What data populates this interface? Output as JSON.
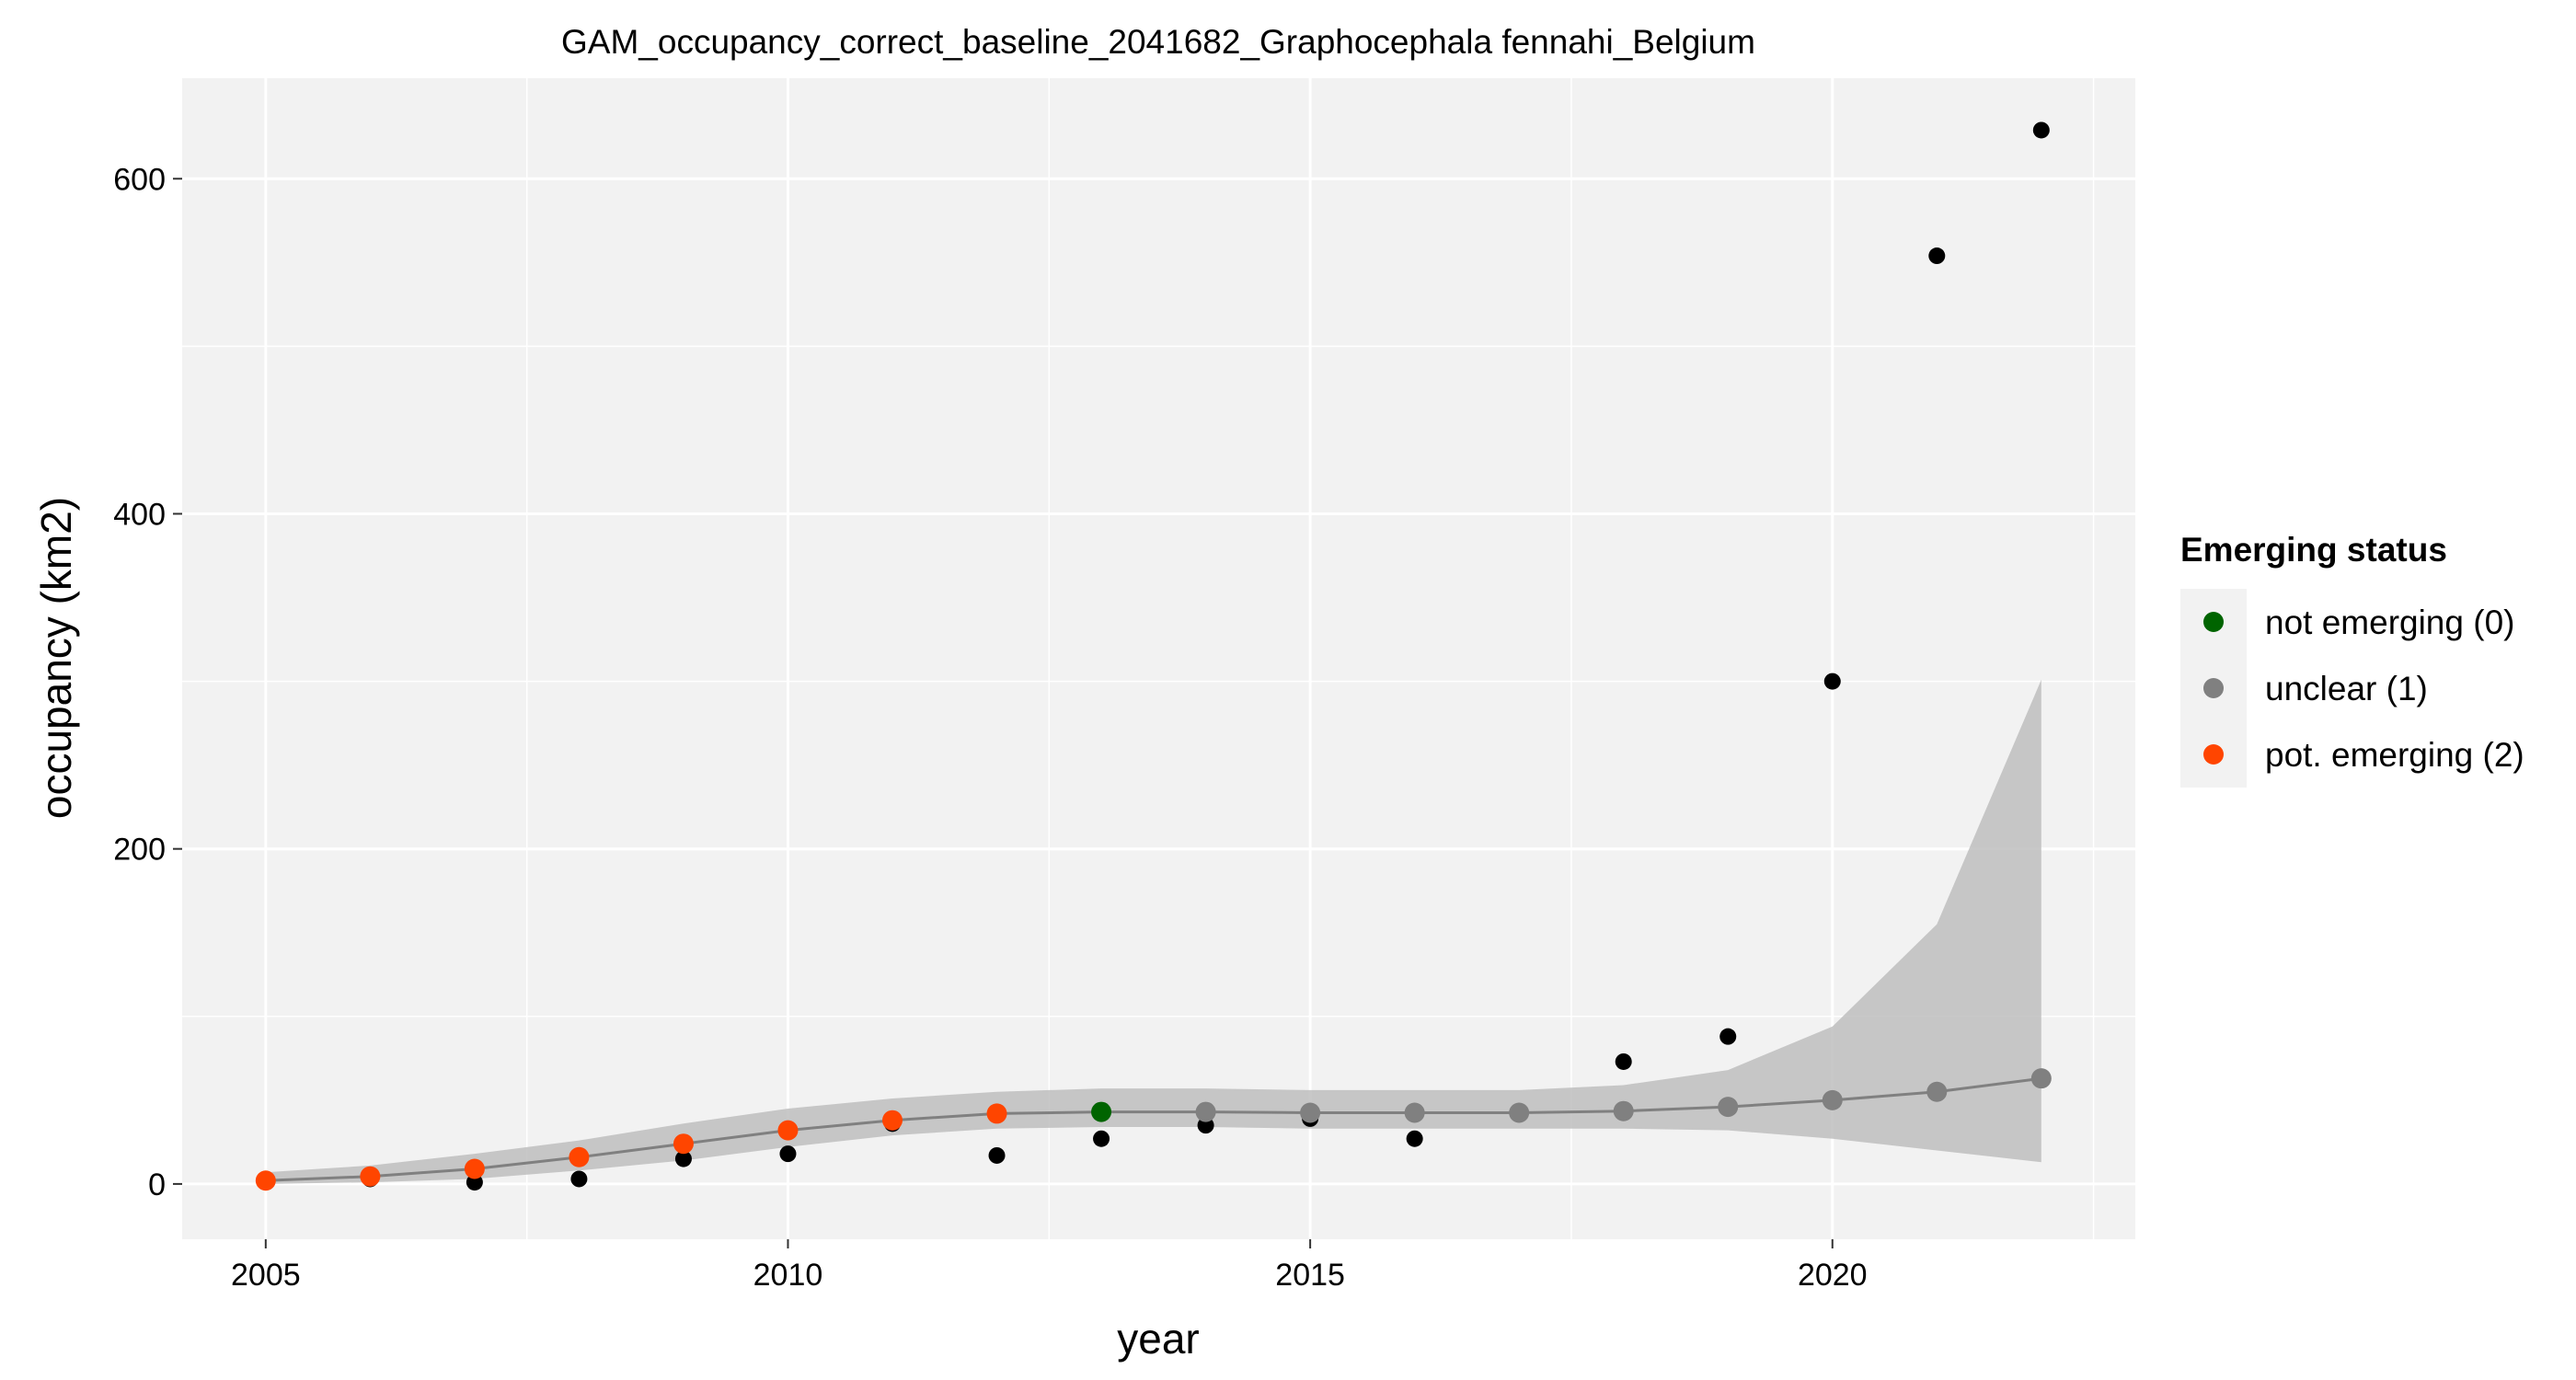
{
  "chart_data": {
    "type": "scatter",
    "title": "GAM_occupancy_correct_baseline_2041682_Graphocephala fennahi_Belgium",
    "xlabel": "year",
    "ylabel": "occupancy (km2)",
    "xlim": [
      2004.2,
      2022.9
    ],
    "ylim": [
      -33,
      660
    ],
    "x_ticks": [
      2005,
      2010,
      2015,
      2020
    ],
    "y_ticks": [
      0,
      200,
      400,
      600
    ],
    "grid": true,
    "legend": {
      "title": "Emerging status",
      "position": "right",
      "entries": [
        {
          "label": "not emerging (0)",
          "color": "#006400"
        },
        {
          "label": "unclear (1)",
          "color": "#808080"
        },
        {
          "label": "pot. emerging (2)",
          "color": "#FF4500"
        }
      ]
    },
    "observed": {
      "color": "#000000",
      "x": [
        2005,
        2006,
        2007,
        2008,
        2009,
        2010,
        2011,
        2012,
        2013,
        2014,
        2015,
        2016,
        2017,
        2018,
        2019,
        2020,
        2021,
        2022
      ],
      "y": [
        2,
        3,
        1,
        3,
        15,
        18,
        36,
        17,
        27,
        35,
        39,
        27,
        42,
        73,
        88,
        300,
        554,
        629
      ]
    },
    "fit": {
      "line_color": "#808080",
      "band_color": "#BEBEBE",
      "x": [
        2005,
        2006,
        2007,
        2008,
        2009,
        2010,
        2011,
        2012,
        2013,
        2014,
        2015,
        2016,
        2017,
        2018,
        2019,
        2020,
        2021,
        2022
      ],
      "y": [
        2,
        4.5,
        9,
        16,
        24,
        32,
        38,
        42,
        43,
        43,
        42.5,
        42.5,
        42.5,
        43.5,
        46,
        50,
        55,
        63
      ],
      "lower": [
        0,
        1,
        3,
        8,
        14,
        22,
        29,
        33,
        34,
        34,
        33,
        33,
        33,
        33,
        32,
        27,
        20,
        13
      ],
      "upper": [
        7,
        11,
        18,
        26,
        36,
        45,
        51,
        55,
        57,
        57,
        56,
        56,
        56,
        59,
        68,
        94,
        155,
        301
      ],
      "status": [
        2,
        2,
        2,
        2,
        2,
        2,
        2,
        2,
        0,
        1,
        1,
        1,
        1,
        1,
        1,
        1,
        1,
        1
      ]
    }
  }
}
